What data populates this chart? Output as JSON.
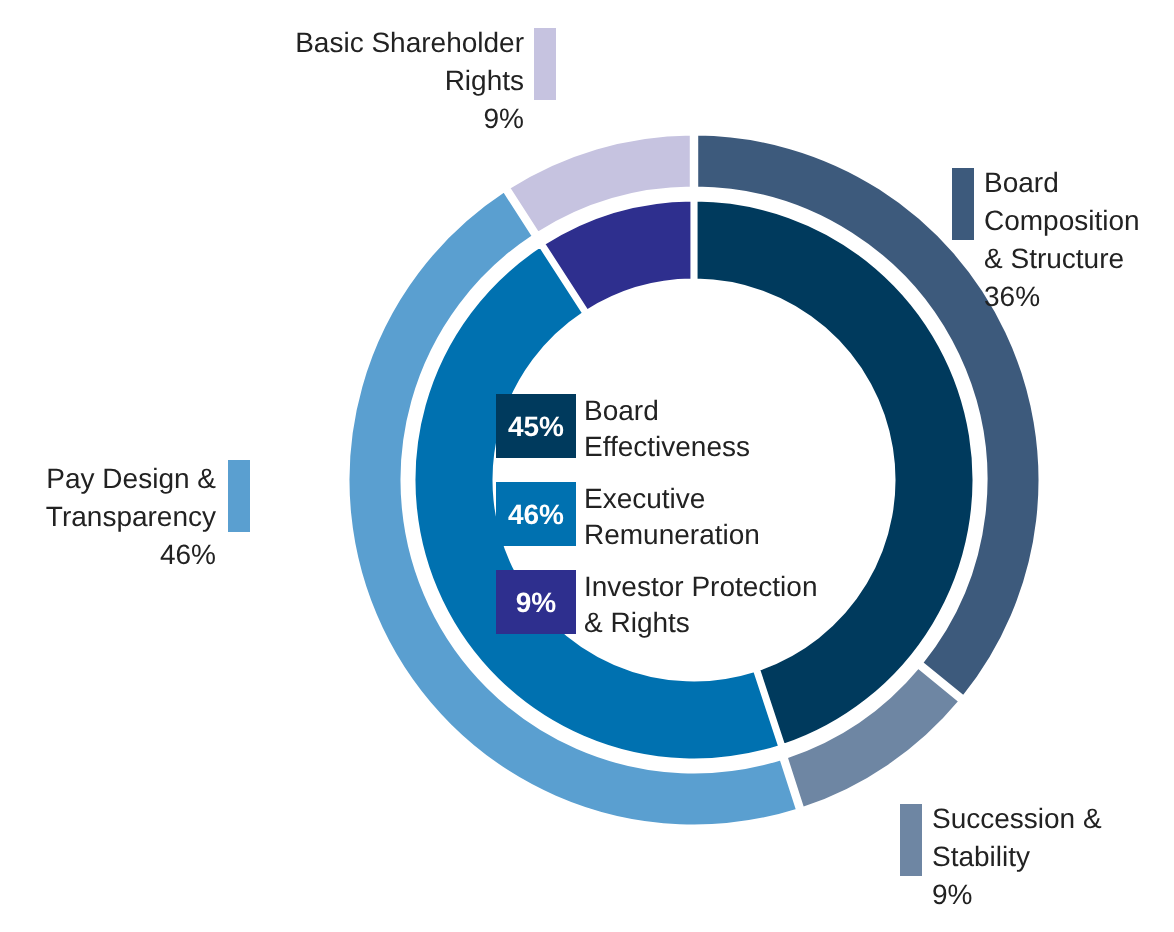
{
  "chart_data": [
    {
      "type": "donut",
      "categories": [
        "Board Effectiveness",
        "Executive Remuneration",
        "Investor Protection & Rights"
      ],
      "values": [
        45,
        46,
        9
      ],
      "colors": [
        "#003a5d",
        "#0071b0",
        "#2e2f8e"
      ],
      "value_labels": [
        "45%",
        "46%",
        "9%"
      ],
      "legend": "center"
    },
    {
      "type": "donut",
      "categories": [
        "Board Composition & Structure",
        "Succession & Stability",
        "Pay Design & Transparency",
        "Basic Shareholder Rights"
      ],
      "values": [
        36,
        9,
        46,
        9
      ],
      "colors": [
        "#3d5a7c",
        "#6e86a3",
        "#5a9fd0",
        "#c6c3e0"
      ],
      "value_labels": [
        "36%",
        "9%",
        "46%",
        "9%"
      ]
    }
  ]
}
